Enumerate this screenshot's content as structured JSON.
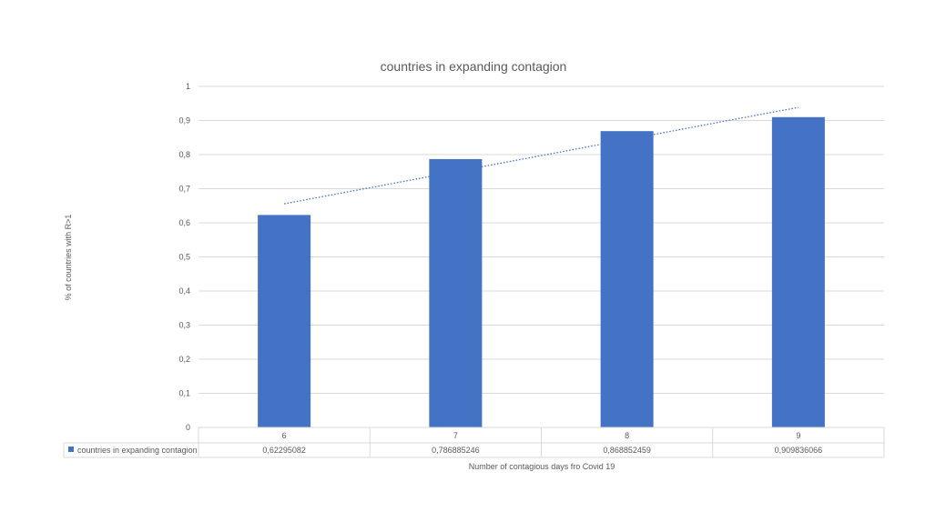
{
  "chart_data": {
    "type": "bar",
    "title": "countries in expanding contagion",
    "xlabel": "Number  of contagious days fro Covid 19",
    "ylabel": "% of countries with R>1",
    "categories": [
      "6",
      "7",
      "8",
      "9"
    ],
    "series": [
      {
        "name": "countries in expanding contagion",
        "values": [
          0.62295082,
          0.786885246,
          0.868852459,
          0.909836066
        ],
        "value_labels": [
          "0,62295082",
          "0,786885246",
          "0,868852459",
          "0,909836066"
        ],
        "color": "#4472C4"
      }
    ],
    "trendline": {
      "type": "linear",
      "style": "dotted",
      "color": "#4472C4"
    },
    "ylim": [
      0,
      1
    ],
    "yticks": [
      "0",
      "0,1",
      "0,2",
      "0,3",
      "0,4",
      "0,5",
      "0,6",
      "0,7",
      "0,8",
      "0,9",
      "1"
    ],
    "grid": true,
    "data_table": true
  }
}
